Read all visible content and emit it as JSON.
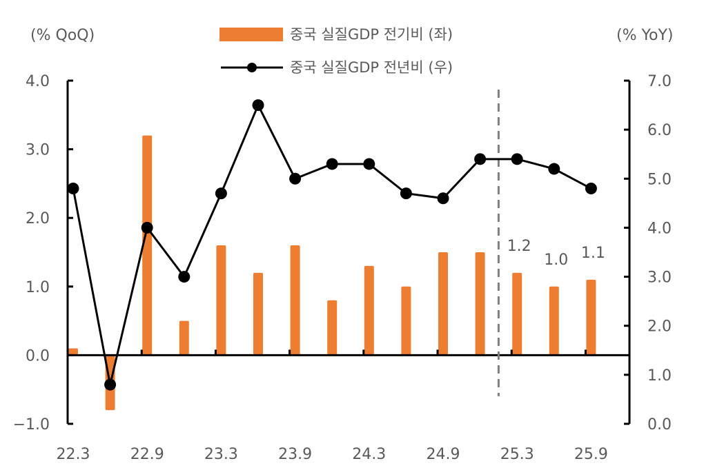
{
  "chart_data": {
    "type": "bar+line",
    "categories": [
      "22.3",
      "22.6",
      "22.9",
      "22.12",
      "23.3",
      "23.6",
      "23.9",
      "23.12",
      "24.3",
      "24.6",
      "24.9",
      "24.12",
      "25.3",
      "25.6",
      "25.9"
    ],
    "tick_labels": [
      "22.3",
      "22.9",
      "23.3",
      "23.9",
      "24.3",
      "24.9",
      "25.3",
      "25.9"
    ],
    "series": [
      {
        "name": "중국 실질GDP 전기비 (좌)",
        "type": "bar",
        "axis": "left",
        "color": "#ED7D31",
        "values": [
          0.1,
          -0.8,
          3.2,
          0.5,
          1.6,
          1.2,
          1.6,
          0.8,
          1.3,
          1.0,
          1.5,
          1.5,
          1.2,
          1.0,
          1.1
        ]
      },
      {
        "name": "중국 실질GDP 전년비 (우)",
        "type": "line",
        "axis": "right",
        "color": "#000000",
        "values": [
          4.8,
          0.8,
          4.0,
          3.0,
          4.7,
          6.5,
          5.0,
          5.3,
          5.3,
          4.7,
          4.6,
          5.4,
          5.4,
          5.2,
          4.8
        ]
      }
    ],
    "data_labels": [
      {
        "category": "25.3",
        "text": "1.2"
      },
      {
        "category": "25.6",
        "text": "1.0"
      },
      {
        "category": "25.9",
        "text": "1.1"
      }
    ],
    "left_axis": {
      "label": "(% QoQ)",
      "ylim": [
        -1.0,
        4.0
      ],
      "ticks": [
        "−1.0",
        "0.0",
        "1.0",
        "2.0",
        "3.0",
        "4.0"
      ]
    },
    "right_axis": {
      "label": "(% YoY)",
      "ylim": [
        0.0,
        7.0
      ],
      "ticks": [
        "0.0",
        "1.0",
        "2.0",
        "3.0",
        "4.0",
        "5.0",
        "6.0",
        "7.0"
      ]
    },
    "divider_after": "24.12",
    "grid": false,
    "legend": "top-center"
  }
}
